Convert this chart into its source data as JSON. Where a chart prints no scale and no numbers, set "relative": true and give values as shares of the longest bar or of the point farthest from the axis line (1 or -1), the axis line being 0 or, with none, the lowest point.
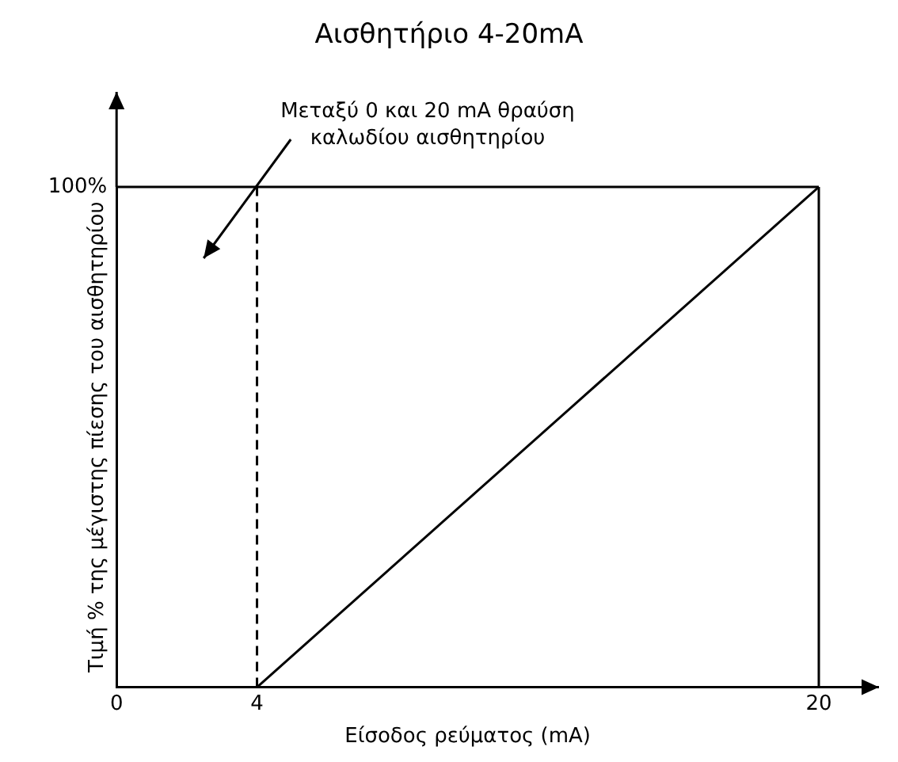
{
  "chart_data": {
    "type": "line",
    "title": "Αισθητήριο 4-20mA",
    "xlabel": "Είσοδος ρεύματος (mA)",
    "ylabel": "Τιμή % της μέγιστης πίεσης του αισθητηρίου",
    "annotations": [
      "Μεταξύ 0  και 20 mA θραύση καλωδίου αισθητηρίου"
    ],
    "x": [
      4,
      20
    ],
    "series": [
      {
        "color": "#000000",
        "values": [
          0,
          1
        ]
      }
    ],
    "relative": true,
    "xlim": [
      0,
      20
    ],
    "xticks": [
      0,
      4,
      20
    ],
    "ref_lines": [
      {
        "axis": "x",
        "value": 4,
        "line_style": "dashed",
        "color": "#000000"
      },
      {
        "axis": "y",
        "value": 1,
        "color": "#000000",
        "label": "100%"
      },
      {
        "axis": "x",
        "value": 20,
        "color": "#000000"
      }
    ],
    "grid": false,
    "legend": false,
    "marker": "none",
    "line_style": "solid"
  }
}
